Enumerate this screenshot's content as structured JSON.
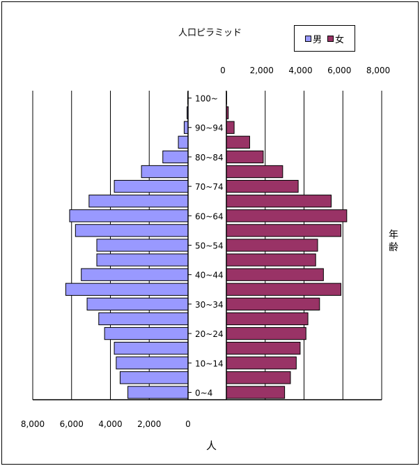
{
  "chart_data": {
    "type": "bar",
    "title": "人口ピラミッド",
    "xlabel": "人",
    "ylabel": "年齢",
    "age_groups": [
      "0~4",
      "5~9",
      "10~14",
      "15~19",
      "20~24",
      "25~29",
      "30~34",
      "35~39",
      "40~44",
      "45~49",
      "50~54",
      "55~59",
      "60~64",
      "65~69",
      "70~74",
      "75~79",
      "80~84",
      "85~89",
      "90~94",
      "95~99",
      "100~"
    ],
    "age_tick_labels": [
      "0~4",
      "10~14",
      "20~24",
      "30~34",
      "40~44",
      "50~54",
      "60~64",
      "70~74",
      "80~84",
      "90~94",
      "100~"
    ],
    "series": [
      {
        "name": "男",
        "color": "#9999ff",
        "values": [
          3100,
          3500,
          3700,
          3800,
          4300,
          4600,
          5200,
          6300,
          5500,
          4700,
          4700,
          5800,
          6100,
          5100,
          3800,
          2400,
          1300,
          500,
          200,
          50,
          10
        ]
      },
      {
        "name": "女",
        "color": "#993366",
        "values": [
          3000,
          3300,
          3600,
          3800,
          4100,
          4200,
          4800,
          5900,
          5000,
          4600,
          4700,
          5900,
          6200,
          5400,
          3700,
          2900,
          1900,
          1200,
          400,
          100,
          10
        ]
      }
    ],
    "male_axis_ticks": [
      "8,000",
      "6,000",
      "4,000",
      "2,000",
      "0"
    ],
    "female_axis_ticks": [
      "0",
      "2,000",
      "4,000",
      "6,000",
      "8,000"
    ],
    "xlim": [
      0,
      8000
    ],
    "grid": true,
    "legend_position": "top-right"
  }
}
